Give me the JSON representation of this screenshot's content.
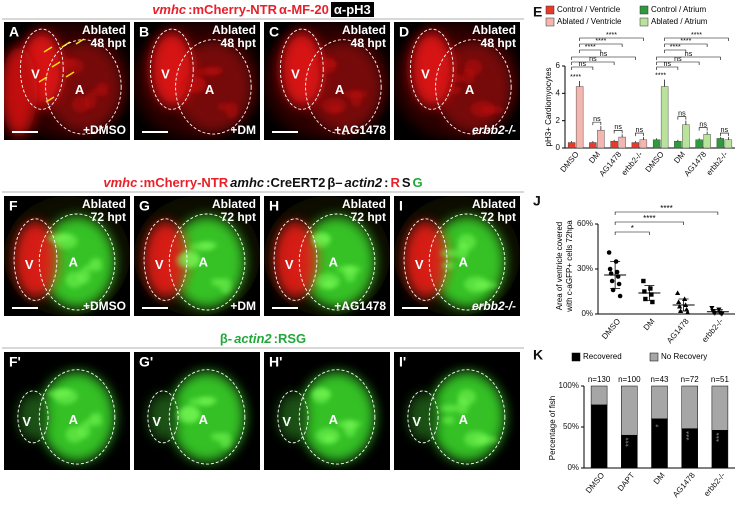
{
  "figure_panels": {
    "headers": [
      [
        {
          "text": "vmhc",
          "color": "#e8202a",
          "italic": true
        },
        {
          "text": ":mCherry-NTR",
          "color": "#e8202a"
        },
        {
          "text": "α-MF-20",
          "color": "#e8202a"
        },
        {
          "text": "α-pH3",
          "color": "#ffffff",
          "box": "#000000"
        }
      ],
      [
        {
          "text": "vmhc",
          "color": "#e8202a",
          "italic": true
        },
        {
          "text": ":mCherry-NTR",
          "color": "#e8202a"
        },
        {
          "text": "amhc",
          "color": "#111111",
          "italic": true
        },
        {
          "text": ":CreERT2",
          "color": "#111111"
        },
        {
          "text": "β–",
          "color": "#111111"
        },
        {
          "text": "actin2",
          "color": "#111111",
          "italic": true
        },
        {
          "text": ":",
          "color": "#111111"
        },
        {
          "text": "R",
          "color": "#e8202a"
        },
        {
          "text": "S",
          "color": "#111111"
        },
        {
          "text": "G",
          "color": "#22a83a"
        }
      ],
      [
        {
          "text": "β-",
          "color": "#22a83a"
        },
        {
          "text": "actin2",
          "color": "#22a83a",
          "italic": true
        },
        {
          "text": ":RSG",
          "color": "#22a83a"
        }
      ]
    ],
    "rows": [
      [
        {
          "letter": "A",
          "ablated": "Ablated",
          "time": "48 hpt",
          "v": "V",
          "a": "A",
          "treatment": "+DMSO"
        },
        {
          "letter": "B",
          "ablated": "Ablated",
          "time": "48 hpt",
          "v": "V",
          "a": "A",
          "treatment": "+DM"
        },
        {
          "letter": "C",
          "ablated": "Ablated",
          "time": "48 hpt",
          "v": "V",
          "a": "A",
          "treatment": "+AG1478"
        },
        {
          "letter": "D",
          "ablated": "Ablated",
          "time": "48 hpt",
          "v": "V",
          "a": "A",
          "treatment": "erbb2-/-",
          "treatment_italic": true
        }
      ],
      [
        {
          "letter": "F",
          "ablated": "Ablated",
          "time": "72 hpt",
          "v": "V",
          "a": "A",
          "treatment": "+DMSO"
        },
        {
          "letter": "G",
          "ablated": "Ablated",
          "time": "72 hpt",
          "v": "V",
          "a": "A",
          "treatment": "+DM"
        },
        {
          "letter": "H",
          "ablated": "Ablated",
          "time": "72 hpt",
          "v": "V",
          "a": "A",
          "treatment": "+AG1478"
        },
        {
          "letter": "I",
          "ablated": "Ablated",
          "time": "72 hpt",
          "v": "V",
          "a": "A",
          "treatment": "erbb2-/-",
          "treatment_italic": true
        }
      ],
      [
        {
          "letter": "F'",
          "v": "V",
          "a": "A"
        },
        {
          "letter": "G'",
          "v": "V",
          "a": "A"
        },
        {
          "letter": "H'",
          "v": "V",
          "a": "A"
        },
        {
          "letter": "I'",
          "v": "V",
          "a": "A"
        }
      ]
    ]
  },
  "chart_data": [
    {
      "type": "bar",
      "panel": "E",
      "ylabel": "pH3+ Cardiomyocytes",
      "categories": [
        "DMSO",
        "DM",
        "AG1478",
        "erbb2-/-",
        "DMSO",
        "DM",
        "AG1478",
        "erbb2-/-"
      ],
      "series": [
        {
          "name": "Control / Ventricle",
          "color": "#e8392b",
          "values": [
            0.4,
            0.4,
            0.5,
            0.4,
            null,
            null,
            null,
            null
          ],
          "errors": [
            0.1,
            0.1,
            0.1,
            0.1,
            null,
            null,
            null,
            null
          ]
        },
        {
          "name": "Ablated / Ventricle",
          "color": "#f4b6b0",
          "values": [
            4.5,
            1.3,
            0.8,
            0.6,
            null,
            null,
            null,
            null
          ],
          "errors": [
            0.4,
            0.3,
            0.2,
            0.2,
            null,
            null,
            null,
            null
          ]
        },
        {
          "name": "Control / Atrium",
          "color": "#2e9a3b",
          "values": [
            null,
            null,
            null,
            null,
            0.6,
            0.5,
            0.6,
            0.7
          ],
          "errors": [
            null,
            null,
            null,
            null,
            0.1,
            0.1,
            0.1,
            0.1
          ]
        },
        {
          "name": "Ablated / Atrium",
          "color": "#b9e29a",
          "values": [
            null,
            null,
            null,
            null,
            4.5,
            1.7,
            1.0,
            0.6
          ],
          "errors": [
            null,
            null,
            null,
            null,
            0.5,
            0.3,
            0.2,
            0.2
          ]
        }
      ],
      "ylim": [
        0,
        6
      ],
      "yticks": [
        0,
        2,
        4,
        6
      ],
      "annotations": [
        "****",
        "ns",
        "ns",
        "ns",
        "****",
        "****",
        "****",
        "ns",
        "ns",
        "ns",
        "****",
        "ns",
        "ns",
        "ns",
        "****",
        "****",
        "****",
        "ns",
        "ns",
        "ns"
      ]
    },
    {
      "type": "scatter",
      "panel": "J",
      "ylabel": [
        "Area of ventricle covered",
        "with c-aGFP+ cells 72hpa"
      ],
      "categories": [
        "DMSO",
        "DM",
        "AG1478",
        "erbb2-/-"
      ],
      "markers": [
        "circle",
        "square",
        "triangle",
        "triangle-down"
      ],
      "points": [
        [
          41,
          35,
          30,
          28,
          27,
          25,
          22,
          20,
          16,
          12
        ],
        [
          22,
          17,
          15,
          13,
          10,
          8
        ],
        [
          14,
          10,
          8,
          6,
          5,
          3,
          2,
          1
        ],
        [
          4,
          3,
          2,
          1,
          1,
          0.5,
          0.5,
          0
        ]
      ],
      "means": [
        26,
        14,
        6,
        1.5
      ],
      "errors": [
        9,
        5,
        4,
        1.5
      ],
      "ylim": [
        0,
        60
      ],
      "yticks": [
        {
          "value": 0,
          "label": "0%"
        },
        {
          "value": 30,
          "label": "30%"
        },
        {
          "value": 60,
          "label": "60%"
        }
      ],
      "annotations": [
        "*",
        "****",
        "****"
      ]
    },
    {
      "type": "stacked-bar",
      "panel": "K",
      "ylabel": "Percentage of fish",
      "categories": [
        "DMSO",
        "DAPT",
        "DM",
        "AG1478",
        "erbb2-/-"
      ],
      "series": [
        {
          "name": "Recovered",
          "color": "#000000",
          "values": [
            77,
            40,
            60,
            48,
            46
          ]
        },
        {
          "name": "No Recovery",
          "color": "#a6a6a6",
          "values": [
            23,
            60,
            40,
            52,
            54
          ]
        }
      ],
      "n_labels": [
        "n=130",
        "n=100",
        "n=43",
        "n=72",
        "n=51"
      ],
      "significance": [
        null,
        "***",
        "*",
        "***",
        "***"
      ],
      "ylim": [
        0,
        100
      ],
      "yticks": [
        {
          "value": 0,
          "label": "0%"
        },
        {
          "value": 50,
          "label": "50%"
        },
        {
          "value": 100,
          "label": "100%"
        }
      ]
    }
  ]
}
